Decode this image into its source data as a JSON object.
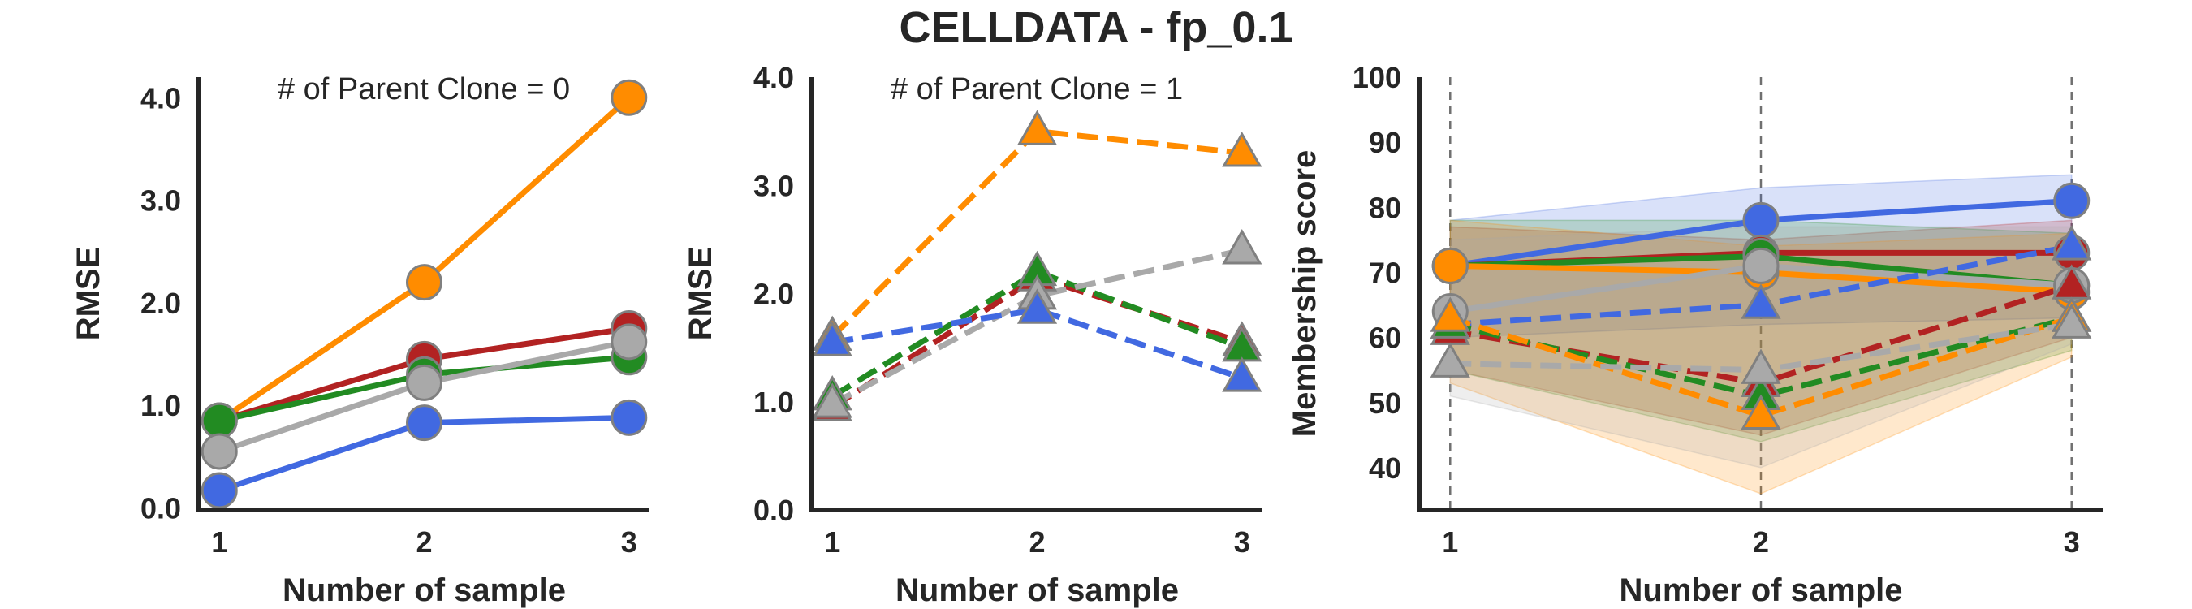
{
  "figure": {
    "suptitle": "CELLDATA - fp_0.1"
  },
  "chart_data": [
    {
      "type": "line",
      "annotation": "# of Parent Clone = 0",
      "xlabel": "Number of sample",
      "ylabel": "RMSE",
      "x": [
        1,
        2,
        3
      ],
      "xticks": [
        "1",
        "2",
        "3"
      ],
      "yticks": [
        "0.0",
        "1.0",
        "2.0",
        "3.0",
        "4.0"
      ],
      "xlim": [
        0.9,
        3.1
      ],
      "ylim": [
        -0.02,
        4.2
      ],
      "marker": "circle",
      "linestyle": "solid",
      "series": [
        {
          "color": "#ff8c00",
          "values": [
            0.85,
            2.2,
            4.0
          ]
        },
        {
          "color": "#b22222",
          "values": [
            0.85,
            1.45,
            1.75
          ]
        },
        {
          "color": "#228b22",
          "values": [
            0.85,
            1.3,
            1.47
          ]
        },
        {
          "color": "#a9a9a9",
          "values": [
            0.55,
            1.22,
            1.62
          ]
        },
        {
          "color": "#4169e1",
          "values": [
            0.17,
            0.83,
            0.88
          ]
        }
      ]
    },
    {
      "type": "line",
      "annotation": "# of Parent Clone = 1",
      "xlabel": "Number of sample",
      "ylabel": "RMSE",
      "x": [
        1,
        2,
        3
      ],
      "xticks": [
        "1",
        "2",
        "3"
      ],
      "yticks": [
        "0.0",
        "1.0",
        "2.0",
        "3.0",
        "4.0"
      ],
      "xlim": [
        0.9,
        3.1
      ],
      "ylim": [
        0.0,
        4.0
      ],
      "marker": "triangle",
      "linestyle": "dashed",
      "series": [
        {
          "color": "#ff8c00",
          "values": [
            1.6,
            3.5,
            3.3
          ]
        },
        {
          "color": "#b22222",
          "values": [
            0.95,
            2.15,
            1.55
          ]
        },
        {
          "color": "#228b22",
          "values": [
            1.05,
            2.2,
            1.5
          ]
        },
        {
          "color": "#a9a9a9",
          "values": [
            0.98,
            1.98,
            2.4
          ]
        },
        {
          "color": "#4169e1",
          "values": [
            1.55,
            1.85,
            1.22
          ]
        }
      ]
    },
    {
      "type": "line",
      "xlabel": "Number of sample",
      "ylabel": "Membership score",
      "x": [
        1,
        2,
        3
      ],
      "xticks": [
        "1",
        "2",
        "3"
      ],
      "yticks": [
        "40",
        "50",
        "60",
        "70",
        "80",
        "90",
        "100"
      ],
      "xlim": [
        0.9,
        3.1
      ],
      "ylim": [
        33.5,
        100.0
      ],
      "vlines": [
        1,
        2,
        3
      ],
      "bands": [
        {
          "color": "#4169e1",
          "low": [
            60,
            62,
            63
          ],
          "high": [
            78,
            83,
            85
          ]
        },
        {
          "color": "#b22222",
          "low": [
            55,
            45,
            60
          ],
          "high": [
            77,
            75,
            78
          ]
        },
        {
          "color": "#228b22",
          "low": [
            55,
            44,
            58
          ],
          "high": [
            78,
            78,
            76
          ]
        },
        {
          "color": "#ff8c00",
          "low": [
            53,
            36,
            57
          ],
          "high": [
            78,
            74,
            76
          ]
        },
        {
          "color": "#a9a9a9",
          "low": [
            51,
            40,
            59
          ],
          "high": [
            75,
            77,
            77
          ]
        }
      ],
      "series": [
        {
          "color": "#4169e1",
          "marker": "circle",
          "linestyle": "solid",
          "values": [
            71,
            78,
            81
          ]
        },
        {
          "color": "#b22222",
          "marker": "circle",
          "linestyle": "solid",
          "values": [
            71,
            73,
            73
          ]
        },
        {
          "color": "#228b22",
          "marker": "circle",
          "linestyle": "solid",
          "values": [
            71,
            72.5,
            68
          ]
        },
        {
          "color": "#ff8c00",
          "marker": "circle",
          "linestyle": "solid",
          "values": [
            71,
            70,
            67
          ]
        },
        {
          "color": "#a9a9a9",
          "marker": "circle",
          "linestyle": "solid",
          "values": [
            64,
            71,
            68
          ]
        },
        {
          "color": "#4169e1",
          "marker": "triangle",
          "linestyle": "dashed",
          "values": [
            62,
            65,
            74
          ]
        },
        {
          "color": "#b22222",
          "marker": "triangle",
          "linestyle": "dashed",
          "values": [
            61,
            53,
            68
          ]
        },
        {
          "color": "#228b22",
          "marker": "triangle",
          "linestyle": "dashed",
          "values": [
            62,
            51,
            63
          ]
        },
        {
          "color": "#ff8c00",
          "marker": "triangle",
          "linestyle": "dashed",
          "values": [
            63,
            48,
            63
          ]
        },
        {
          "color": "#a9a9a9",
          "marker": "triangle",
          "linestyle": "dashed",
          "values": [
            56,
            55,
            62
          ]
        }
      ]
    }
  ]
}
